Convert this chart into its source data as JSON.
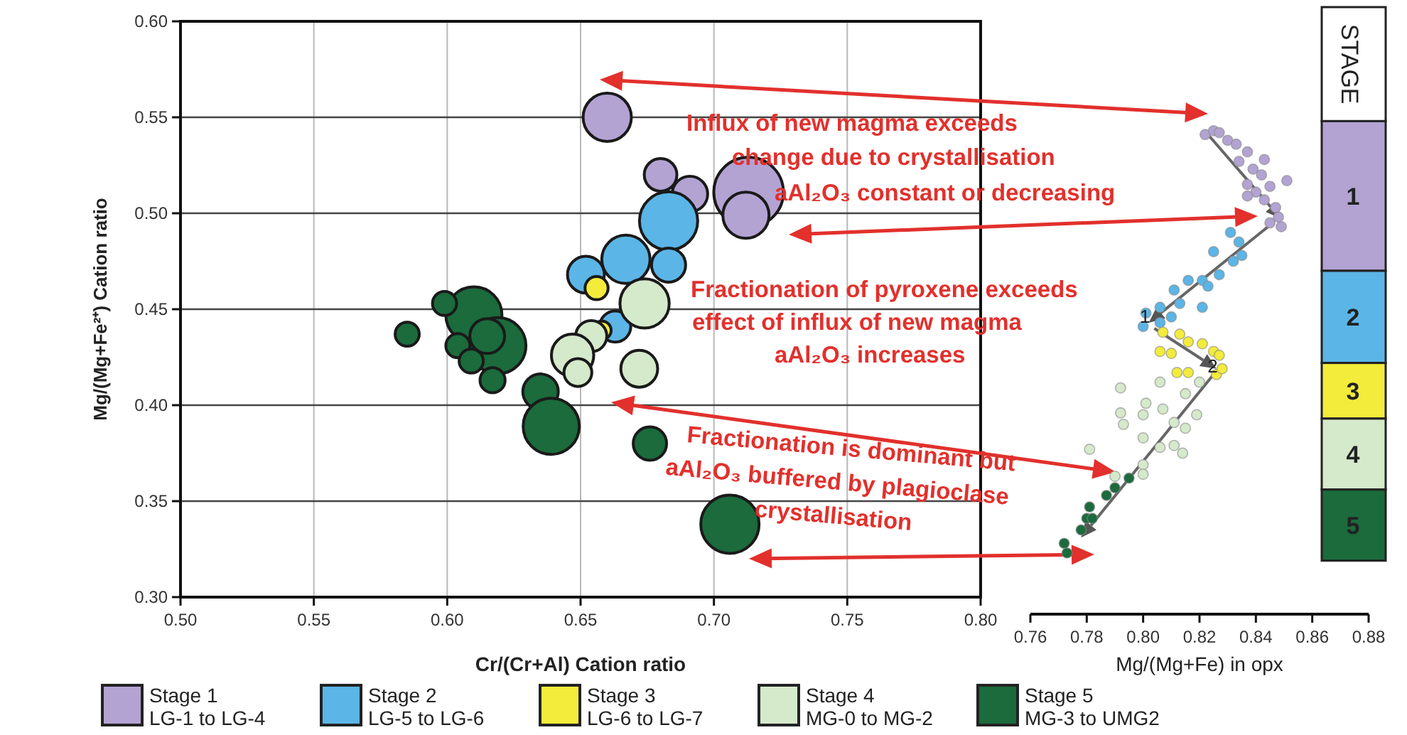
{
  "chart_data": [
    {
      "type": "bubble",
      "xlabel": "Cr/(Cr+Al) Cation ratio",
      "ylabel": "Mg/(Mg+Fe²⁺) Cation ratio",
      "xlim": [
        0.5,
        0.8
      ],
      "ylim": [
        0.3,
        0.6
      ],
      "xticks": [
        {
          "value": 0.5,
          "label": "0.50"
        },
        {
          "value": 0.55,
          "label": "0.55"
        },
        {
          "value": 0.6,
          "label": "0.60"
        },
        {
          "value": 0.65,
          "label": "0.65"
        },
        {
          "value": 0.7,
          "label": "0.70"
        },
        {
          "value": 0.75,
          "label": "0.75"
        },
        {
          "value": 0.8,
          "label": "0.80"
        }
      ],
      "yticks": [
        {
          "value": 0.3,
          "label": "0.30"
        },
        {
          "value": 0.35,
          "label": "0.35"
        },
        {
          "value": 0.4,
          "label": "0.40"
        },
        {
          "value": 0.45,
          "label": "0.45"
        },
        {
          "value": 0.5,
          "label": "0.50"
        },
        {
          "value": 0.55,
          "label": "0.55"
        },
        {
          "value": 0.6,
          "label": "0.60"
        }
      ],
      "grid": true,
      "legend": "bottom",
      "annotations": [
        "Influx of new magma exceeds\nchange due to crystallisation\naAl₂O₃ constant or decreasing",
        "Fractionation of pyroxene exceeds\neffect of influx of new magma\naAl₂O₃ increases",
        "Fractionation is dominant but\naAl₂O₃ buffered by plagioclase\ncrystallisation"
      ],
      "series": [
        {
          "name": "Stage 1\nLG-1 to LG-4",
          "color": "#b3a3d3",
          "x": [
            0.66,
            0.68,
            0.713,
            0.691,
            0.712
          ],
          "values": [
            0.55,
            0.52,
            0.511,
            0.51,
            0.499
          ],
          "sizes": [
            0.48,
            0.22,
            1,
            0.26,
            0.44
          ]
        },
        {
          "name": "Stage 2\nLG-5 to LG-6",
          "color": "#5bb5e6",
          "x": [
            0.683,
            0.667,
            0.683,
            0.652,
            0.663
          ],
          "values": [
            0.496,
            0.476,
            0.473,
            0.468,
            0.441
          ],
          "sizes": [
            0.7,
            0.48,
            0.24,
            0.28,
            0.2
          ]
        },
        {
          "name": "Stage 3\nLG-6 to LG-7",
          "color": "#f3ec3a",
          "x": [
            0.656,
            0.658
          ],
          "values": [
            0.461,
            0.439
          ],
          "sizes": [
            0.11,
            0.07
          ]
        },
        {
          "name": "Stage 4\nMG-0 to MG-2",
          "color": "#d5e9cb",
          "x": [
            0.674,
            0.654,
            0.647,
            0.649,
            0.672
          ],
          "values": [
            0.453,
            0.436,
            0.426,
            0.417,
            0.419
          ],
          "sizes": [
            0.5,
            0.2,
            0.37,
            0.16,
            0.28
          ]
        },
        {
          "name": "Stage 5\nMG-3 to UMG2",
          "color": "#1b6b3c",
          "x": [
            0.61,
            0.599,
            0.585,
            0.619,
            0.604,
            0.615,
            0.609,
            0.617,
            0.635,
            0.639,
            0.676,
            0.706
          ],
          "values": [
            0.447,
            0.453,
            0.437,
            0.431,
            0.431,
            0.436,
            0.423,
            0.413,
            0.407,
            0.389,
            0.38,
            0.338
          ],
          "sizes": [
            0.65,
            0.12,
            0.12,
            0.65,
            0.12,
            0.25,
            0.12,
            0.13,
            0.26,
            0.65,
            0.23,
            0.7
          ]
        }
      ]
    },
    {
      "type": "scatter",
      "xlabel": "Mg/(Mg+Fe) in opx",
      "xlim": [
        0.76,
        0.88
      ],
      "ylim": [
        0.3,
        0.6
      ],
      "xticks": [
        0.76,
        0.78,
        {
          "value": 0.8,
          "label": "0.80"
        },
        0.82,
        0.84,
        0.86,
        0.88
      ],
      "tick_labels": "x",
      "marker": "circle",
      "legend_title": "STAGE",
      "bands": [
        {
          "axis": "y",
          "from": 0.548,
          "to": 0.47,
          "label": "1",
          "color": "#b3a3d3"
        },
        {
          "axis": "y",
          "from": 0.47,
          "to": 0.422,
          "label": "2",
          "color": "#5bb5e6"
        },
        {
          "axis": "y",
          "from": 0.422,
          "to": 0.393,
          "label": "3",
          "color": "#f3ec3a"
        },
        {
          "axis": "y",
          "from": 0.393,
          "to": 0.356,
          "label": "4",
          "color": "#d5e9cb"
        },
        {
          "axis": "y",
          "from": 0.356,
          "to": 0.319,
          "label": "5",
          "color": "#1b6b3c"
        }
      ],
      "annotations": [
        {
          "text": "1",
          "x": 0.805,
          "y": 0.44
        },
        {
          "text": "2",
          "x": 0.829,
          "y": 0.414
        }
      ],
      "series": [
        {
          "color": "#b3a3d3",
          "x": [
            0.822,
            0.825,
            0.827,
            0.83,
            0.833,
            0.837,
            0.834,
            0.843,
            0.839,
            0.842,
            0.837,
            0.84,
            0.845,
            0.851,
            0.843,
            0.837,
            0.847,
            0.849,
            0.845,
            0.848
          ],
          "values": [
            0.541,
            0.543,
            0.542,
            0.538,
            0.536,
            0.532,
            0.527,
            0.528,
            0.523,
            0.52,
            0.515,
            0.511,
            0.514,
            0.517,
            0.507,
            0.509,
            0.503,
            0.493,
            0.495,
            0.498
          ]
        },
        {
          "color": "#5bb5e6",
          "x": [
            0.831,
            0.834,
            0.825,
            0.832,
            0.835,
            0.827,
            0.821,
            0.816,
            0.811,
            0.823,
            0.813,
            0.821,
            0.801,
            0.806,
            0.8,
            0.81,
            0.806
          ],
          "values": [
            0.49,
            0.485,
            0.48,
            0.475,
            0.478,
            0.468,
            0.465,
            0.465,
            0.46,
            0.462,
            0.453,
            0.451,
            0.448,
            0.451,
            0.441,
            0.446,
            0.443
          ]
        },
        {
          "color": "#f3ec3a",
          "x": [
            0.807,
            0.813,
            0.816,
            0.821,
            0.806,
            0.81,
            0.825,
            0.827,
            0.812,
            0.816,
            0.826,
            0.828
          ],
          "values": [
            0.438,
            0.437,
            0.433,
            0.432,
            0.428,
            0.427,
            0.428,
            0.426,
            0.417,
            0.417,
            0.416,
            0.419
          ]
        },
        {
          "color": "#d5e9cb",
          "x": [
            0.792,
            0.806,
            0.82,
            0.815,
            0.801,
            0.8,
            0.807,
            0.792,
            0.793,
            0.811,
            0.815,
            0.819,
            0.8,
            0.781,
            0.806,
            0.811,
            0.814,
            0.8,
            0.8,
            0.79
          ],
          "values": [
            0.409,
            0.412,
            0.412,
            0.406,
            0.401,
            0.395,
            0.398,
            0.396,
            0.39,
            0.391,
            0.388,
            0.395,
            0.383,
            0.377,
            0.378,
            0.379,
            0.375,
            0.369,
            0.364,
            0.363
          ]
        },
        {
          "color": "#1b6b3c",
          "x": [
            0.795,
            0.79,
            0.787,
            0.781,
            0.78,
            0.782,
            0.778,
            0.772,
            0.773
          ],
          "values": [
            0.362,
            0.357,
            0.353,
            0.347,
            0.341,
            0.341,
            0.335,
            0.328,
            0.323
          ]
        }
      ]
    }
  ]
}
